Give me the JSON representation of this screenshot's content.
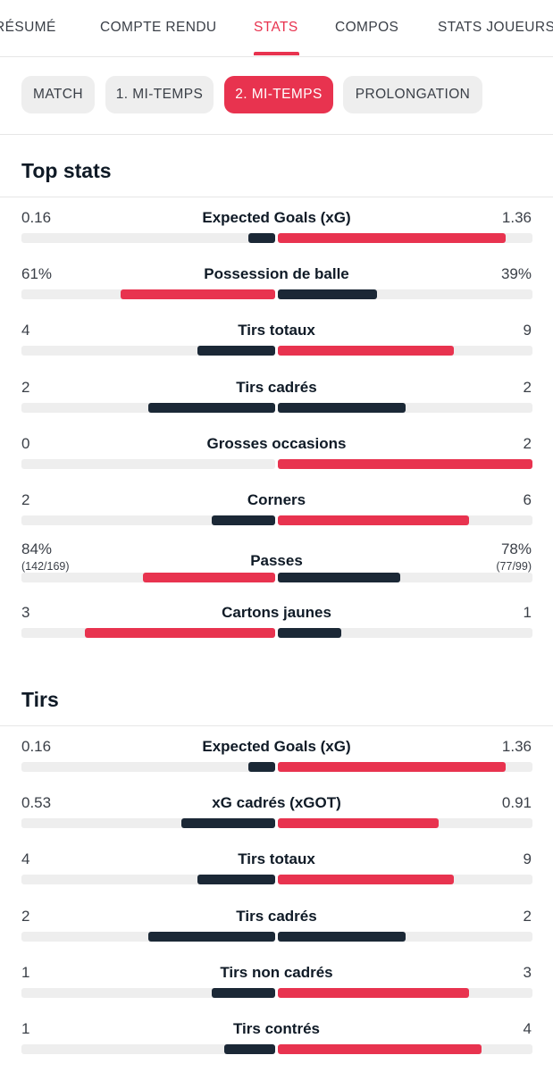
{
  "tabs": [
    {
      "label": "RÉSUMÉ",
      "active": false
    },
    {
      "label": "COMPTE RENDU",
      "active": false
    },
    {
      "label": "STATS",
      "active": true
    },
    {
      "label": "COMPOS",
      "active": false
    },
    {
      "label": "STATS JOUEURS",
      "active": false
    }
  ],
  "periods": [
    {
      "label": "MATCH",
      "active": false
    },
    {
      "label": "1. MI-TEMPS",
      "active": false
    },
    {
      "label": "2. MI-TEMPS",
      "active": true
    },
    {
      "label": "PROLONGATION",
      "active": false
    }
  ],
  "colors": {
    "accent": "#e8334f",
    "dark": "#1b2836",
    "track": "#eeeeee"
  },
  "sections": [
    {
      "title": "Top stats",
      "stats": [
        {
          "name": "Expected Goals (xG)",
          "home": "0.16",
          "away": "1.36",
          "home_share": 0.105,
          "away_share": 0.895,
          "highlight": "away"
        },
        {
          "name": "Possession de balle",
          "home": "61%",
          "away": "39%",
          "home_share": 0.61,
          "away_share": 0.39,
          "highlight": "home"
        },
        {
          "name": "Tirs totaux",
          "home": "4",
          "away": "9",
          "home_share": 0.3077,
          "away_share": 0.6923,
          "highlight": "away"
        },
        {
          "name": "Tirs cadrés",
          "home": "2",
          "away": "2",
          "home_share": 0.5,
          "away_share": 0.5,
          "highlight": "none"
        },
        {
          "name": "Grosses occasions",
          "home": "0",
          "away": "2",
          "home_share": 0.0,
          "away_share": 1.0,
          "highlight": "away"
        },
        {
          "name": "Corners",
          "home": "2",
          "away": "6",
          "home_share": 0.25,
          "away_share": 0.75,
          "highlight": "away"
        },
        {
          "name": "Passes",
          "home": "84%",
          "away": "78%",
          "home_sub": "(142/169)",
          "away_sub": "(77/99)",
          "home_share": 0.52,
          "away_share": 0.48,
          "highlight": "home"
        },
        {
          "name": "Cartons jaunes",
          "home": "3",
          "away": "1",
          "home_share": 0.75,
          "away_share": 0.25,
          "highlight": "home"
        }
      ]
    },
    {
      "title": "Tirs",
      "stats": [
        {
          "name": "Expected Goals (xG)",
          "home": "0.16",
          "away": "1.36",
          "home_share": 0.105,
          "away_share": 0.895,
          "highlight": "away"
        },
        {
          "name": "xG cadrés (xGOT)",
          "home": "0.53",
          "away": "0.91",
          "home_share": 0.368,
          "away_share": 0.632,
          "highlight": "away"
        },
        {
          "name": "Tirs totaux",
          "home": "4",
          "away": "9",
          "home_share": 0.3077,
          "away_share": 0.6923,
          "highlight": "away"
        },
        {
          "name": "Tirs cadrés",
          "home": "2",
          "away": "2",
          "home_share": 0.5,
          "away_share": 0.5,
          "highlight": "none"
        },
        {
          "name": "Tirs non cadrés",
          "home": "1",
          "away": "3",
          "home_share": 0.25,
          "away_share": 0.75,
          "highlight": "away"
        },
        {
          "name": "Tirs contrés",
          "home": "1",
          "away": "4",
          "home_share": 0.2,
          "away_share": 0.8,
          "highlight": "away"
        }
      ]
    }
  ]
}
